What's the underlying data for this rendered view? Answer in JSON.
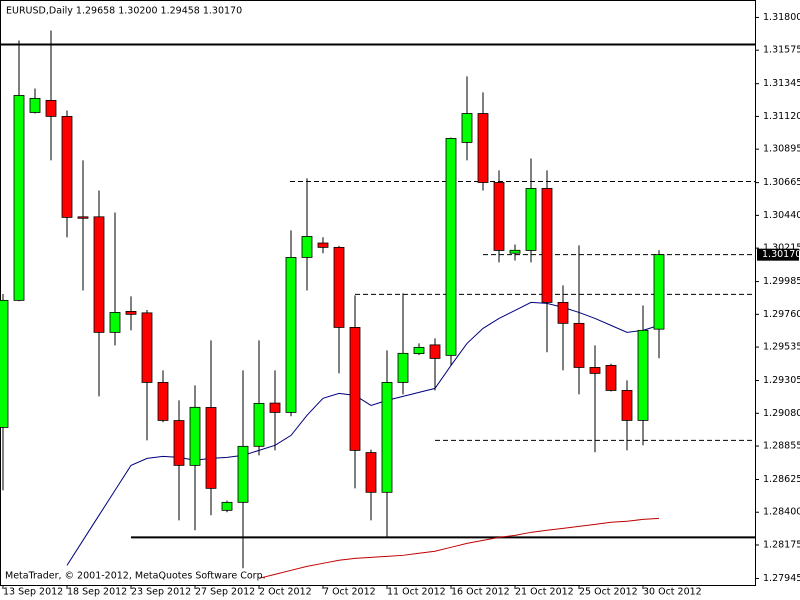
{
  "chart_data": {
    "type": "candlestick",
    "title": "EURUSD,Daily  1.29658 1.30200 1.29458 1.30170",
    "watermark": "MetaTrader, © 2001-2012, MetaQuotes Software Corp.",
    "categories": [
      "13 Sep 2012",
      null,
      null,
      null,
      "18 Sep 2012",
      null,
      null,
      null,
      "23 Sep 2012",
      null,
      null,
      null,
      "27 Sep 2012",
      null,
      null,
      null,
      "2 Oct 2012",
      null,
      null,
      null,
      "7 Oct 2012",
      null,
      null,
      null,
      "11 Oct 2012",
      null,
      null,
      null,
      "16 Oct 2012",
      null,
      null,
      null,
      "21 Oct 2012",
      null,
      null,
      null,
      "25 Oct 2012",
      null,
      null,
      null,
      "30 Oct 2012",
      null
    ],
    "open": [
      1.28983,
      1.29856,
      1.31147,
      1.3123,
      1.3112,
      1.3043,
      1.3043,
      1.29636,
      1.2978,
      1.2977,
      1.29292,
      1.2903,
      1.28722,
      1.2912,
      1.28413,
      1.28468,
      1.28853,
      1.2915,
      1.29086,
      1.30151,
      1.3025,
      1.3022,
      1.2967,
      1.2881,
      1.28537,
      1.29292,
      1.2949,
      1.2955,
      1.29478,
      1.30941,
      1.3114,
      1.30666,
      1.3018,
      1.30199,
      1.30625,
      1.29842,
      1.29698,
      1.29395,
      1.29409,
      1.29237,
      1.29031,
      1.29658
    ],
    "high": [
      1.299,
      1.31642,
      1.31312,
      1.3171,
      1.31161,
      1.30818,
      1.30611,
      1.3046,
      1.29883,
      1.2979,
      1.29375,
      1.29169,
      1.29272,
      1.29581,
      1.2848,
      1.29375,
      1.29581,
      1.29375,
      1.30337,
      1.30694,
      1.3029,
      1.3023,
      1.2989,
      1.2883,
      1.29512,
      1.29904,
      1.2956,
      1.29595,
      1.30975,
      1.31395,
      1.31285,
      1.30749,
      1.3024,
      1.30831,
      1.30749,
      1.29959,
      1.30234,
      1.29547,
      1.2942,
      1.29306,
      1.29821,
      1.302
    ],
    "low": [
      1.2855,
      1.2985,
      1.3114,
      1.30818,
      1.30289,
      1.29924,
      1.29196,
      1.29547,
      1.2965,
      1.28894,
      1.29018,
      1.28344,
      1.28276,
      1.28379,
      1.284,
      1.28015,
      1.28791,
      1.28825,
      1.2906,
      1.29924,
      1.3018,
      1.29354,
      1.28564,
      1.28344,
      1.28228,
      1.2921,
      1.2948,
      1.29237,
      1.2941,
      1.30818,
      1.30611,
      1.30117,
      1.3013,
      1.30117,
      1.29499,
      1.29375,
      1.2921,
      1.28812,
      1.2923,
      1.28825,
      1.2886,
      1.29458
    ],
    "close": [
      1.29856,
      1.31264,
      1.31244,
      1.3112,
      1.30426,
      1.3042,
      1.29636,
      1.29773,
      1.2976,
      1.29292,
      1.29031,
      1.28722,
      1.29121,
      1.28564,
      1.28468,
      1.28853,
      1.29148,
      1.29086,
      1.30151,
      1.30295,
      1.3022,
      1.2967,
      1.28825,
      1.28537,
      1.29292,
      1.29492,
      1.29533,
      1.29457,
      1.30969,
      1.3114,
      1.30666,
      1.30199,
      1.302,
      1.30625,
      1.29842,
      1.29698,
      1.29395,
      1.29354,
      1.29237,
      1.29031,
      1.2965,
      1.3017
    ],
    "up_color": "#00ff00",
    "down_color": "#ff0000",
    "lines": [
      {
        "color": "#000080",
        "values": [
          null,
          null,
          null,
          null,
          1.28035,
          1.28207,
          1.28379,
          1.2855,
          1.28722,
          1.2877,
          1.28784,
          1.28777,
          1.28757,
          1.2877,
          1.28777,
          1.28791,
          1.28825,
          1.2886,
          1.28928,
          1.29066,
          1.29183,
          1.29217,
          1.29203,
          1.29134,
          1.29169,
          1.29196,
          1.29224,
          1.29251,
          1.29409,
          1.2956,
          1.29663,
          1.29732,
          1.29787,
          1.29842,
          1.29835,
          1.29808,
          1.29773,
          1.29732,
          1.29684,
          1.29636,
          1.2965,
          1.29684
        ]
      },
      {
        "color": "#c00000",
        "values": [
          null,
          null,
          null,
          null,
          null,
          null,
          null,
          null,
          null,
          null,
          null,
          null,
          null,
          null,
          null,
          null,
          1.27946,
          1.27973,
          1.28001,
          1.28028,
          1.28049,
          1.2807,
          1.28083,
          1.2809,
          1.28097,
          1.28104,
          1.28118,
          1.28132,
          1.28159,
          1.28186,
          1.28207,
          1.28227,
          1.28241,
          1.28262,
          1.28276,
          1.28289,
          1.28303,
          1.28317,
          1.28331,
          1.28338,
          1.28351,
          1.28358
        ]
      }
    ],
    "levels": [
      {
        "value": 1.31614,
        "style": "solid"
      },
      {
        "value": 1.28227,
        "style": "solid"
      },
      {
        "value": 1.30673,
        "style": "dashed"
      },
      {
        "value": 1.3017,
        "style": "dashed"
      },
      {
        "value": 1.29897,
        "style": "dashed"
      },
      {
        "value": 1.28894,
        "style": "dashed"
      }
    ],
    "last_price": {
      "value": 1.3017,
      "label": "1.30170"
    },
    "ylim": [
      1.279,
      1.3192
    ],
    "yticks": [
      {
        "value": 1.318,
        "label": "1.31800"
      },
      {
        "value": 1.31575,
        "label": "1.31575"
      },
      {
        "value": 1.31345,
        "label": "1.31345"
      },
      {
        "value": 1.3112,
        "label": "1.31120"
      },
      {
        "value": 1.30895,
        "label": "1.30895"
      },
      {
        "value": 1.30665,
        "label": "1.30665"
      },
      {
        "value": 1.3044,
        "label": "1.30440"
      },
      {
        "value": 1.30215,
        "label": "1.30215"
      },
      {
        "value": 1.29985,
        "label": "1.29985"
      },
      {
        "value": 1.2976,
        "label": "1.29760"
      },
      {
        "value": 1.29535,
        "label": "1.29535"
      },
      {
        "value": 1.29305,
        "label": "1.29305"
      },
      {
        "value": 1.2908,
        "label": "1.29080"
      },
      {
        "value": 1.28855,
        "label": "1.28855"
      },
      {
        "value": 1.28625,
        "label": "1.28625"
      },
      {
        "value": 1.284,
        "label": "1.28400"
      },
      {
        "value": 1.28175,
        "label": "1.28175"
      },
      {
        "value": 1.27945,
        "label": "1.27945"
      }
    ]
  }
}
